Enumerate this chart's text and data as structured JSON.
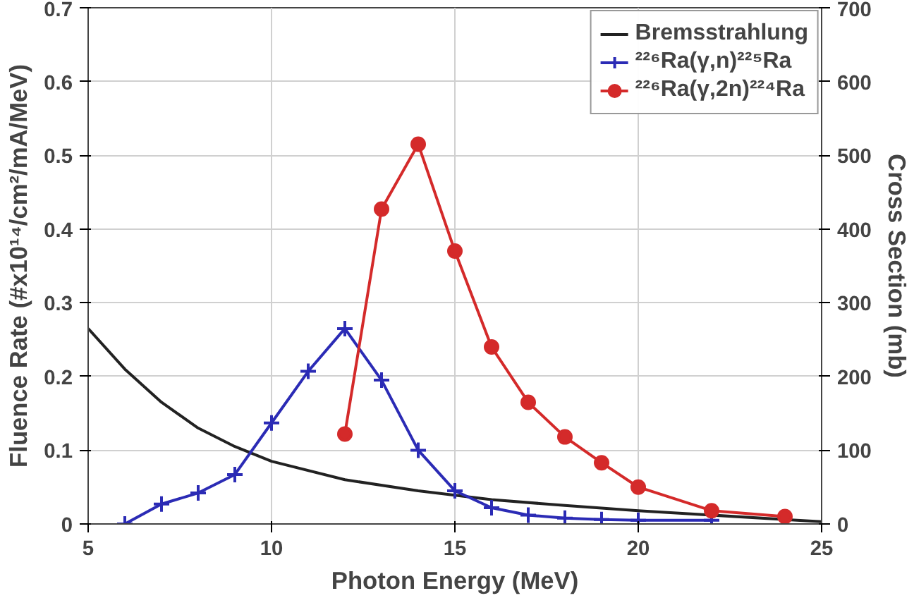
{
  "chart_data": {
    "type": "line",
    "xlabel": "Photon Energy (MeV)",
    "ylabel": "Fluence Rate (#x10¹⁴/cm²/mA/MeV)",
    "y2label": "Cross Section (mb)",
    "xlim": [
      5,
      25
    ],
    "xticks": [
      5,
      10,
      15,
      20,
      25
    ],
    "ylim": [
      0,
      0.7
    ],
    "yticks": [
      0,
      0.1,
      0.2,
      0.3,
      0.4,
      0.5,
      0.6,
      0.7
    ],
    "y2lim": [
      0,
      700
    ],
    "y2ticks": [
      0,
      100,
      200,
      300,
      400,
      500,
      600,
      700
    ],
    "grid": true,
    "legend": "top right",
    "series": [
      {
        "name": "Bremsstrahlung",
        "color": "#222222",
        "marker": "none",
        "x": [
          5,
          6,
          7,
          8,
          9,
          10,
          12,
          14,
          16,
          18,
          20,
          22,
          24,
          25
        ],
        "values": [
          0.265,
          0.21,
          0.165,
          0.13,
          0.105,
          0.085,
          0.06,
          0.045,
          0.033,
          0.025,
          0.018,
          0.012,
          0.006,
          0.003
        ]
      },
      {
        "name": "²²⁶Ra(γ,n)²²⁵Ra",
        "color": "#2b2bb5",
        "marker": "cross",
        "axis": "y2",
        "x": [
          6,
          7,
          8,
          9,
          10,
          11,
          12,
          13,
          14,
          15,
          16,
          17,
          18,
          19,
          20,
          22
        ],
        "values": [
          0,
          27,
          42,
          67,
          137,
          207,
          265,
          195,
          100,
          45,
          22,
          12,
          8,
          6,
          5,
          5
        ]
      },
      {
        "name": "²²⁶Ra(γ,2n)²²⁴Ra",
        "color": "#d42a2a",
        "marker": "circle",
        "axis": "y2",
        "x": [
          12,
          13,
          14,
          15,
          16,
          17,
          18,
          19,
          20,
          22,
          24
        ],
        "values": [
          122,
          427,
          515,
          370,
          240,
          165,
          118,
          83,
          50,
          18,
          10
        ]
      }
    ]
  }
}
